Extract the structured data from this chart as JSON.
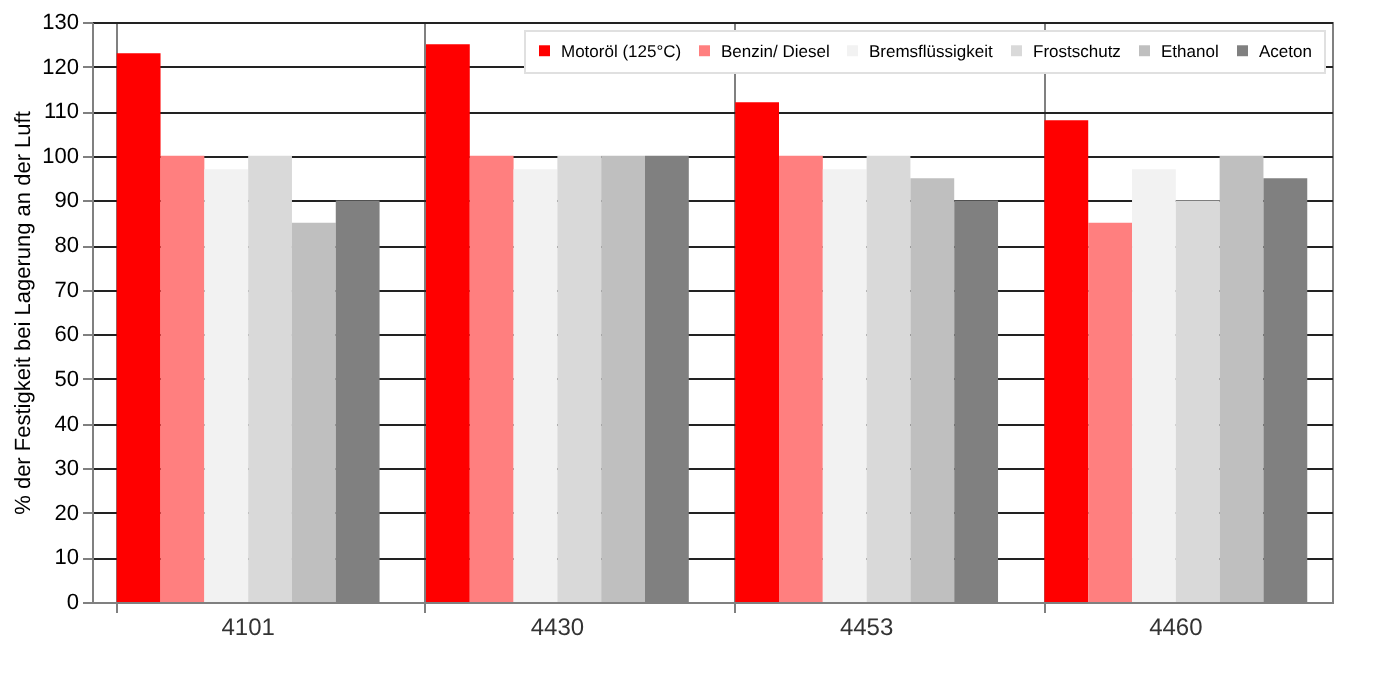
{
  "chart_data": {
    "type": "bar",
    "ylabel": "% der Festigkeit bei Lagerung an der Luft",
    "categories": [
      "4101",
      "4430",
      "4453",
      "4460"
    ],
    "series": [
      {
        "name": "Motoröl (125°C)",
        "color": "#ff0000",
        "values": [
          123,
          125,
          112,
          108
        ]
      },
      {
        "name": "Benzin/ Diesel",
        "color": "#ff7f7f",
        "values": [
          100,
          100,
          100,
          85
        ]
      },
      {
        "name": "Bremsflüssigkeit",
        "color": "#f2f2f2",
        "values": [
          97,
          97,
          97,
          97
        ]
      },
      {
        "name": "Frostschutz",
        "color": "#d9d9d9",
        "values": [
          100,
          100,
          100,
          90
        ]
      },
      {
        "name": "Ethanol",
        "color": "#bfbfbf",
        "values": [
          85,
          100,
          95,
          100
        ]
      },
      {
        "name": "Aceton",
        "color": "#808080",
        "values": [
          90,
          100,
          90,
          95
        ]
      }
    ],
    "ylim": [
      0,
      130
    ],
    "yticks": [
      0,
      10,
      20,
      30,
      40,
      50,
      60,
      70,
      80,
      90,
      100,
      110,
      120,
      130
    ],
    "grid": true,
    "legend": "top right"
  }
}
